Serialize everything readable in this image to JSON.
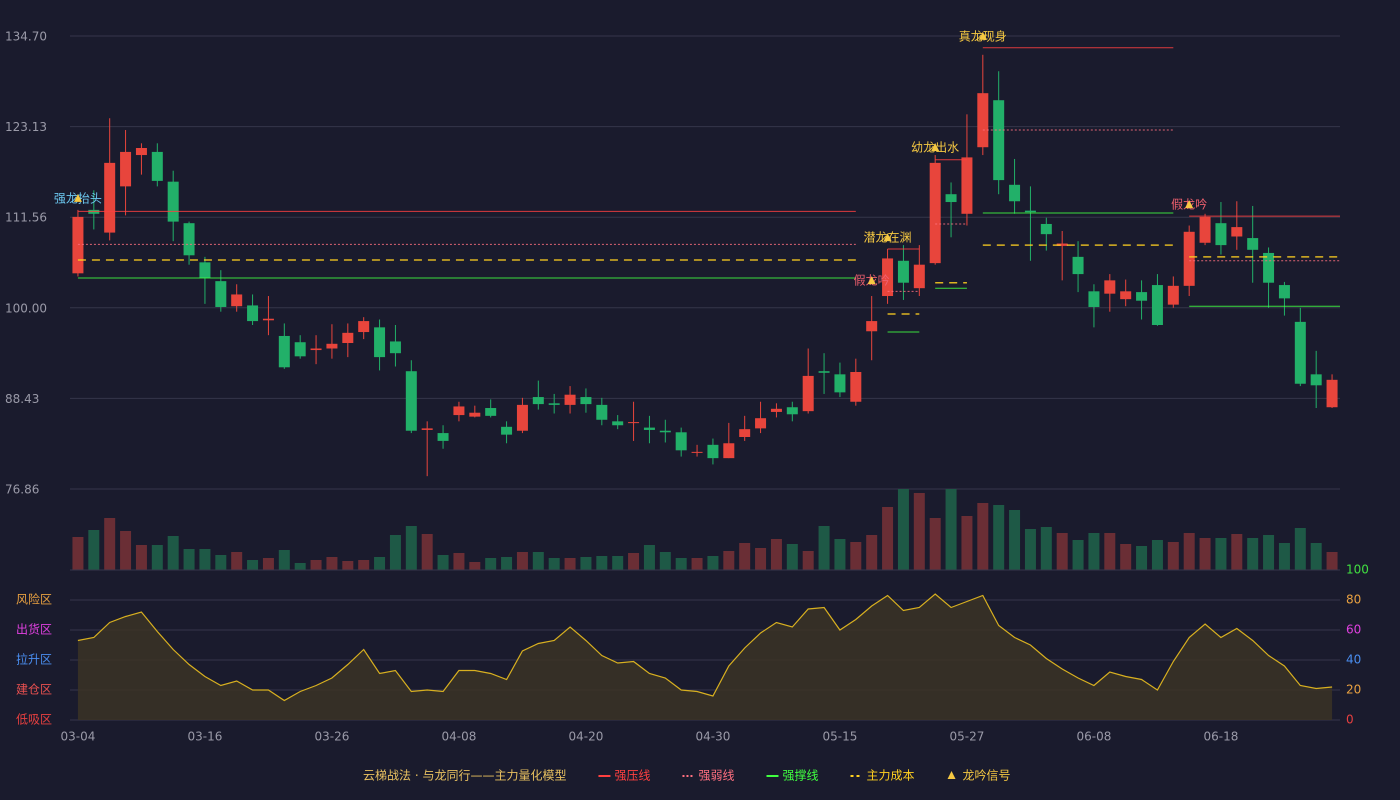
{
  "chart_data": [
    {
      "type": "candlestick",
      "categories": [
        "03-04",
        null,
        null,
        null,
        null,
        null,
        null,
        null,
        "03-16",
        null,
        null,
        null,
        null,
        null,
        null,
        null,
        "03-26",
        null,
        null,
        null,
        null,
        null,
        null,
        null,
        "04-08",
        null,
        null,
        null,
        null,
        null,
        null,
        null,
        "04-20",
        null,
        null,
        null,
        null,
        null,
        null,
        null,
        "04-30",
        null,
        null,
        null,
        null,
        null,
        null,
        null,
        "05-15",
        null,
        null,
        null,
        null,
        null,
        null,
        null,
        "05-27",
        null,
        null,
        null,
        null,
        null,
        null,
        null,
        "06-08",
        null,
        null,
        null,
        null,
        null,
        null,
        null,
        "06-18",
        null,
        null,
        null,
        null,
        null,
        null,
        null
      ],
      "open": [
        104.4,
        112.5,
        109.6,
        115.5,
        119.5,
        119.9,
        116.1,
        110.8,
        105.8,
        103.4,
        100.2,
        100.3,
        98.4,
        96.4,
        95.6,
        94.6,
        94.8,
        95.5,
        96.9,
        97.5,
        95.7,
        91.9,
        84.4,
        84,
        86.3,
        86.1,
        87.2,
        84.8,
        84.3,
        88.6,
        87.8,
        87.6,
        88.6,
        87.6,
        85.5,
        85.3,
        84.7,
        84.3,
        84.1,
        81.5,
        82.5,
        80.8,
        83.5,
        84.6,
        86.7,
        87.3,
        86.8,
        91.9,
        91.5,
        88,
        97,
        101.5,
        106,
        102.5,
        105.7,
        114.5,
        112,
        120.5,
        126.5,
        115.7,
        112.4,
        110.7,
        107.9,
        106.5,
        102.1,
        101.8,
        101.1,
        102,
        102.9,
        100.4,
        102.8,
        108.3,
        110.8,
        109.1,
        108.9,
        107,
        102.9,
        98.2,
        91.5,
        87.3
      ],
      "high": [
        112.5,
        115,
        124.2,
        122.7,
        121,
        121,
        117.5,
        111,
        106.5,
        104.8,
        103,
        101.7,
        101.5,
        98,
        96.5,
        96.5,
        97.9,
        98,
        98.8,
        98.5,
        97.8,
        93.3,
        85.5,
        85,
        88,
        87.5,
        88.3,
        85.5,
        88.5,
        90.7,
        89,
        90,
        89.7,
        88.5,
        86.3,
        88,
        86.2,
        85.7,
        84.7,
        82.5,
        83.3,
        85.3,
        86.2,
        88,
        87.8,
        88,
        94.8,
        94.2,
        93,
        93.5,
        101.5,
        107.5,
        108,
        108,
        119.5,
        116,
        124.7,
        132.3,
        130.2,
        119,
        115.5,
        111.5,
        109.8,
        108.5,
        103,
        104.3,
        103.6,
        103.5,
        104.3,
        104,
        110.5,
        112,
        113.5,
        113.6,
        113,
        107.7,
        103.3,
        100,
        94.5,
        91.5
      ],
      "low": [
        104,
        110,
        108.6,
        111.8,
        117,
        115.5,
        108.5,
        105.5,
        100.5,
        99.5,
        99.5,
        97.8,
        96.5,
        92.2,
        93.5,
        92.8,
        93.5,
        93.7,
        96,
        92,
        92.5,
        84,
        78.5,
        82,
        85.5,
        86,
        86,
        82.7,
        84,
        87,
        86.5,
        86.5,
        86.6,
        85,
        84.5,
        83,
        82.7,
        82.8,
        81,
        81,
        80,
        80.8,
        83,
        84,
        86,
        85.5,
        86.5,
        89,
        88.6,
        87.5,
        93.3,
        100.5,
        101,
        101.5,
        105.5,
        109,
        110.5,
        119.5,
        114.5,
        112,
        106,
        107.3,
        103.5,
        102,
        97.5,
        99.5,
        100.2,
        98.5,
        97.7,
        100,
        101.5,
        108,
        106.8,
        107.4,
        103.2,
        100,
        99,
        90,
        87.2,
        87.2
      ],
      "close": [
        111.6,
        112,
        118.5,
        119.9,
        120.4,
        116.2,
        111,
        106.7,
        103.8,
        100.1,
        101.7,
        98.3,
        98.6,
        92.4,
        93.8,
        94.8,
        95.4,
        96.8,
        98.3,
        93.7,
        94.2,
        84.3,
        84.6,
        83,
        87.4,
        86.6,
        86.2,
        83.8,
        87.6,
        87.7,
        87.6,
        88.9,
        87.7,
        85.7,
        85,
        85.4,
        84.4,
        84.1,
        81.8,
        81.6,
        80.8,
        82.7,
        84.5,
        85.9,
        87.1,
        86.4,
        91.3,
        91.7,
        89.2,
        91.8,
        98.3,
        106.3,
        103.2,
        105.5,
        118.5,
        113.5,
        119.2,
        127.4,
        116.3,
        113.6,
        112.2,
        109.4,
        108.2,
        104.3,
        100.1,
        103.5,
        102.1,
        100.9,
        97.8,
        102.8,
        109.7,
        111.6,
        108,
        110.3,
        107.4,
        103.2,
        101.2,
        90.3,
        90.1,
        90.8
      ],
      "up_color": "#e8453c",
      "down_color": "#22b069",
      "ylim": [
        76.86,
        134.7
      ],
      "yticks": [
        {
          "value": 134.7,
          "label": "134.70"
        },
        123.13,
        111.56,
        {
          "value": 100,
          "label": "100.00"
        },
        88.43,
        76.86
      ],
      "grid": true,
      "signals": [
        {
          "name": "强龙抬头",
          "color": "#6cc8f0",
          "index": 0,
          "price": 113.9,
          "start": 0,
          "end": 49,
          "levels": [
            112.3,
            108.1,
            103.8,
            106.1
          ]
        },
        {
          "name": "假龙吟",
          "color": "#f0606e",
          "index": 50,
          "price": 103.4
        },
        {
          "name": "潜龙在渊",
          "color": "#f5c842",
          "index": 51,
          "price": 108.9,
          "start": 51,
          "end": 53,
          "levels": [
            107.5,
            102.1,
            96.9,
            99.2
          ]
        },
        {
          "name": "幼龙出水",
          "color": "#f5c842",
          "index": 54,
          "price": 120.4,
          "start": 54,
          "end": 56,
          "levels": [
            118.9,
            110.7,
            102.5,
            103.2
          ]
        },
        {
          "name": "真龙现身",
          "color": "#f5c842",
          "index": 57,
          "price": 134.6,
          "start": 57,
          "end": 69,
          "levels": [
            133.2,
            122.7,
            112.1,
            108
          ]
        },
        {
          "name": "假龙吟",
          "color": "#f0606e",
          "index": 70,
          "price": 113.1,
          "start": 70,
          "end": 79,
          "levels": [
            111.7,
            106,
            100.2,
            106.5
          ]
        }
      ]
    },
    {
      "type": "bar",
      "values": [
        33,
        40,
        52,
        39,
        25,
        25,
        34,
        21,
        21,
        15,
        18,
        10,
        12,
        20,
        7,
        10,
        13,
        9,
        10,
        13,
        35,
        44,
        36,
        15,
        17,
        8,
        12,
        13,
        18,
        18,
        12,
        12,
        13,
        14,
        14,
        17,
        25,
        18,
        12,
        12,
        14,
        19,
        27,
        22,
        31,
        26,
        19,
        44,
        31,
        28,
        35,
        63,
        81,
        77,
        52,
        81,
        54,
        67,
        65,
        60,
        41,
        43,
        37,
        30,
        37,
        37,
        26,
        24,
        30,
        28,
        37,
        32,
        32,
        36,
        32,
        35,
        27,
        42,
        27,
        18
      ],
      "up_color": "#6a2e35",
      "down_color": "#1e5946"
    },
    {
      "type": "area",
      "values": [
        53,
        55,
        65,
        69,
        72,
        59,
        47,
        37,
        29,
        23,
        26,
        20,
        20,
        13,
        19,
        23,
        28,
        37,
        47,
        31,
        33,
        19,
        20,
        19,
        33,
        33,
        31,
        27,
        46,
        51,
        53,
        62,
        53,
        43,
        38,
        39,
        31,
        28,
        20,
        19,
        16,
        36,
        48,
        58,
        65,
        62,
        74,
        75,
        60,
        67,
        76,
        83,
        73,
        75,
        84,
        75,
        79,
        83,
        63,
        55,
        50,
        41,
        34,
        28,
        23,
        32,
        29,
        27,
        20,
        39,
        55,
        64,
        55,
        61,
        53,
        43,
        36,
        23,
        21,
        22
      ],
      "color": "#d8b020",
      "ylim": [
        0,
        100
      ],
      "yticks": [
        0,
        20,
        40,
        60,
        80,
        100
      ],
      "ytick_colors": [
        "#e84040",
        "#e8a040",
        "#4a8ef0",
        "#e040e0",
        "#e8a040",
        "#40e040"
      ],
      "zones": [
        {
          "value": 80,
          "label": "风险区",
          "color": "#e8a040"
        },
        {
          "value": 60,
          "label": "出货区",
          "color": "#e040e0"
        },
        {
          "value": 40,
          "label": "拉升区",
          "color": "#4a8ef0"
        },
        {
          "value": 20,
          "label": "建仓区",
          "color": "#e85050"
        },
        {
          "value": 0,
          "label": "低吸区",
          "color": "#e84040"
        }
      ]
    }
  ],
  "legend": {
    "title": "云梯战法 · 与龙同行——主力量化模型",
    "title_color": "#e8c060",
    "items": [
      {
        "name": "强压线",
        "color": "#ff4040",
        "style": "solid"
      },
      {
        "name": "强弱线",
        "color": "#ff7080",
        "style": "dotted"
      },
      {
        "name": "强撑线",
        "color": "#40ff40",
        "style": "solid"
      },
      {
        "name": "主力成本",
        "color": "#ffd020",
        "style": "dashed"
      },
      {
        "name": "龙吟信号",
        "color": "#f5c842",
        "style": "triangle"
      }
    ]
  }
}
